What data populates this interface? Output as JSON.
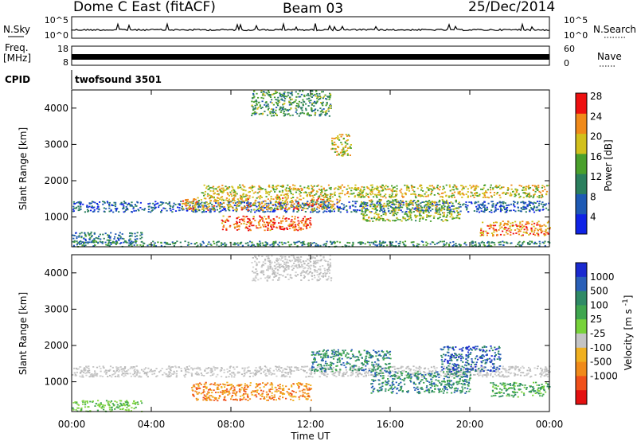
{
  "header": {
    "title": "Dome C East (fitACF)",
    "beam": "Beam 03",
    "date": "25/Dec/2014"
  },
  "params": {
    "nsky_label": "N.Sky",
    "nsky_ticks": [
      "10^5",
      "10^0"
    ],
    "nsearch_label": "N.Search",
    "nsearch_ticks": [
      "10^5",
      "10^0"
    ],
    "freq_label": "Freq.",
    "freq_unit": "[MHz]",
    "freq_ticks": [
      "18",
      "8"
    ],
    "nave_label": "Nave",
    "nave_ticks": [
      "60",
      "0"
    ],
    "cpid_label": "CPID",
    "cpid_value": "twofsound 3501"
  },
  "chart_data": [
    {
      "type": "heatmap",
      "name": "power",
      "ylabel": "Slant Range [km]",
      "xlabel": "",
      "ylim": [
        180,
        4500
      ],
      "yticks": [
        "1000",
        "2000",
        "3000",
        "4000"
      ],
      "ytick_values": [
        1000,
        2000,
        3000,
        4000
      ],
      "colorbar_label": "Power [dB]",
      "colorbar_ticks": [
        "4",
        "8",
        "12",
        "16",
        "20",
        "24",
        "28"
      ],
      "colorbar_colors": [
        "#0f23e6",
        "#1e5ab4",
        "#2b7f5e",
        "#4aa02c",
        "#d2c01c",
        "#f08a1a",
        "#ee1010"
      ],
      "colorbar_range": [
        0,
        32
      ],
      "scatter_regions": [
        {
          "t": [
            0.0,
            24.0
          ],
          "r": [
            1150,
            1450
          ],
          "value": 8
        },
        {
          "t": [
            0.0,
            3.5
          ],
          "r": [
            300,
            600
          ],
          "value": 10
        },
        {
          "t": [
            5.5,
            13.5
          ],
          "r": [
            1200,
            1550
          ],
          "value": 22
        },
        {
          "t": [
            6.5,
            24.0
          ],
          "r": [
            1550,
            1900
          ],
          "value": 20
        },
        {
          "t": [
            7.5,
            12.0
          ],
          "r": [
            650,
            1050
          ],
          "value": 26
        },
        {
          "t": [
            9.0,
            13.0
          ],
          "r": [
            3800,
            4500
          ],
          "value": 14
        },
        {
          "t": [
            13.0,
            14.0
          ],
          "r": [
            2700,
            3300
          ],
          "value": 20
        },
        {
          "t": [
            14.5,
            19.5
          ],
          "r": [
            900,
            1500
          ],
          "value": 18
        },
        {
          "t": [
            20.5,
            24.0
          ],
          "r": [
            500,
            900
          ],
          "value": 24
        },
        {
          "t": [
            0.0,
            24.0
          ],
          "r": [
            200,
            350
          ],
          "value": 12
        }
      ]
    },
    {
      "type": "heatmap",
      "name": "velocity",
      "ylabel": "Slant Range [km]",
      "xlabel": "Time UT",
      "ylim": [
        180,
        4500
      ],
      "yticks": [
        "1000",
        "2000",
        "3000",
        "4000"
      ],
      "ytick_values": [
        1000,
        2000,
        3000,
        4000
      ],
      "colorbar_label": "Velocity [m s^-1]",
      "colorbar_ticks": [
        "1000",
        "500",
        "100",
        "25",
        "-25",
        "-100",
        "-500",
        "-1000"
      ],
      "colorbar_colors": [
        "#1a2ad0",
        "#2a60b8",
        "#2f8a66",
        "#3fa64f",
        "#77d23a",
        "#c4c4c4",
        "#f0b020",
        "#f08a1a",
        "#f0501a",
        "#e41010"
      ],
      "xticks": [
        "00:00",
        "04:00",
        "08:00",
        "12:00",
        "16:00",
        "20:00",
        "00:00"
      ],
      "xtick_values": [
        0,
        4,
        8,
        12,
        16,
        20,
        24
      ],
      "xlim": [
        0,
        24
      ],
      "scatter_regions": [
        {
          "t": [
            0.0,
            24.0
          ],
          "r": [
            1150,
            1450
          ],
          "value": "grey"
        },
        {
          "t": [
            0.0,
            3.5
          ],
          "r": [
            200,
            500
          ],
          "value": "green-light"
        },
        {
          "t": [
            6.0,
            12.0
          ],
          "r": [
            500,
            1000
          ],
          "value": "orange"
        },
        {
          "t": [
            12.0,
            16.0
          ],
          "r": [
            1300,
            1900
          ],
          "value": "teal"
        },
        {
          "t": [
            9.0,
            13.0
          ],
          "r": [
            3800,
            4500
          ],
          "value": "grey"
        },
        {
          "t": [
            18.5,
            21.5
          ],
          "r": [
            1300,
            2000
          ],
          "value": "blue"
        },
        {
          "t": [
            15.0,
            20.0
          ],
          "r": [
            700,
            1300
          ],
          "value": "teal"
        },
        {
          "t": [
            21.0,
            24.0
          ],
          "r": [
            600,
            1000
          ],
          "value": "green"
        }
      ]
    }
  ]
}
